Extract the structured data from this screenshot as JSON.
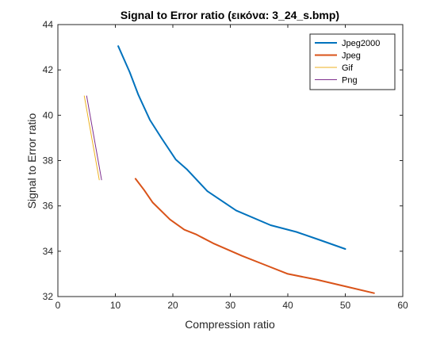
{
  "chart_data": {
    "type": "line",
    "title": "Signal to Error ratio (εικόνα: 3_24_s.bmp)",
    "xlabel": "Compression ratio",
    "ylabel": "Signal to Error ratio",
    "xlim": [
      0,
      60
    ],
    "ylim": [
      32,
      44
    ],
    "xticks": [
      0,
      10,
      20,
      30,
      40,
      50,
      60
    ],
    "yticks": [
      32,
      34,
      36,
      38,
      40,
      42,
      44
    ],
    "grid": false,
    "legend_position": "top-right",
    "series": [
      {
        "name": "Jpeg2000",
        "color": "#0072BD",
        "line_width": "thick",
        "x": [
          10.5,
          12.5,
          14.0,
          16.0,
          18.0,
          20.5,
          22.5,
          26.0,
          31.0,
          37.0,
          41.5,
          45.5,
          50.0
        ],
        "y": [
          43.05,
          41.9,
          40.9,
          39.8,
          39.0,
          38.05,
          37.6,
          36.65,
          35.8,
          35.15,
          34.85,
          34.5,
          34.1
        ]
      },
      {
        "name": "Jpeg",
        "color": "#D95319",
        "line_width": "thick",
        "x": [
          13.5,
          15.0,
          16.5,
          19.5,
          22.0,
          24.0,
          27.0,
          32.0,
          36.0,
          40.0,
          45.0,
          50.0,
          55.0
        ],
        "y": [
          37.2,
          36.7,
          36.15,
          35.4,
          34.95,
          34.75,
          34.35,
          33.8,
          33.4,
          33.0,
          32.75,
          32.45,
          32.15
        ]
      },
      {
        "name": "Gif",
        "color": "#EDB120",
        "line_width": "thin",
        "x": [
          4.6,
          7.2
        ],
        "y": [
          40.85,
          37.15
        ]
      },
      {
        "name": "Png",
        "color": "#7E2F8E",
        "line_width": "thin",
        "x": [
          5.0,
          7.6
        ],
        "y": [
          40.85,
          37.15
        ]
      }
    ]
  }
}
